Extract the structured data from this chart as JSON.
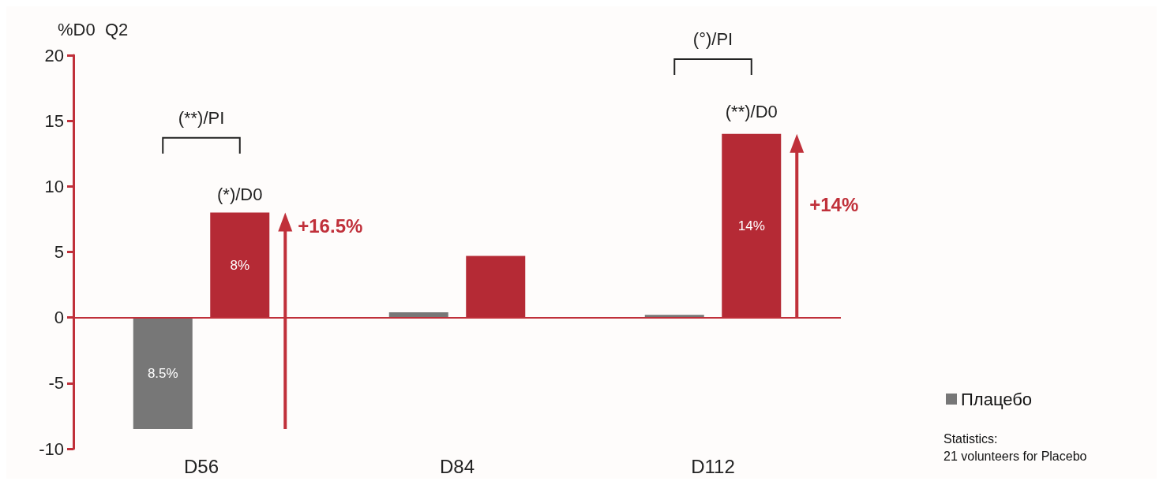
{
  "chart_data": {
    "type": "bar",
    "ylabel": "%D0  Q2",
    "categories": [
      "D56",
      "D84",
      "D112"
    ],
    "series": [
      {
        "name": "Плацебо",
        "color": "#777777",
        "values": [
          -8.5,
          0.4,
          0.2
        ]
      },
      {
        "color": "#b52a35",
        "values": [
          8,
          4.7,
          14
        ],
        "value_labels": [
          "8%",
          null,
          "14%"
        ]
      }
    ],
    "ref_lines": [
      {
        "axis": "y",
        "value": 0,
        "color": "#c0303a"
      }
    ],
    "ylim": [
      -10,
      20
    ],
    "yticks": [
      -10,
      -5,
      0,
      5,
      10,
      15,
      20
    ],
    "grid": false,
    "legend": "bottom right",
    "annotations": [
      "(**)/PI",
      "(*)/D0",
      "+16.5%",
      "(°)/PI",
      "(**)/D0",
      "+14%",
      "8.5%",
      "Statistics:",
      "21 volunteers for Placebo"
    ]
  }
}
